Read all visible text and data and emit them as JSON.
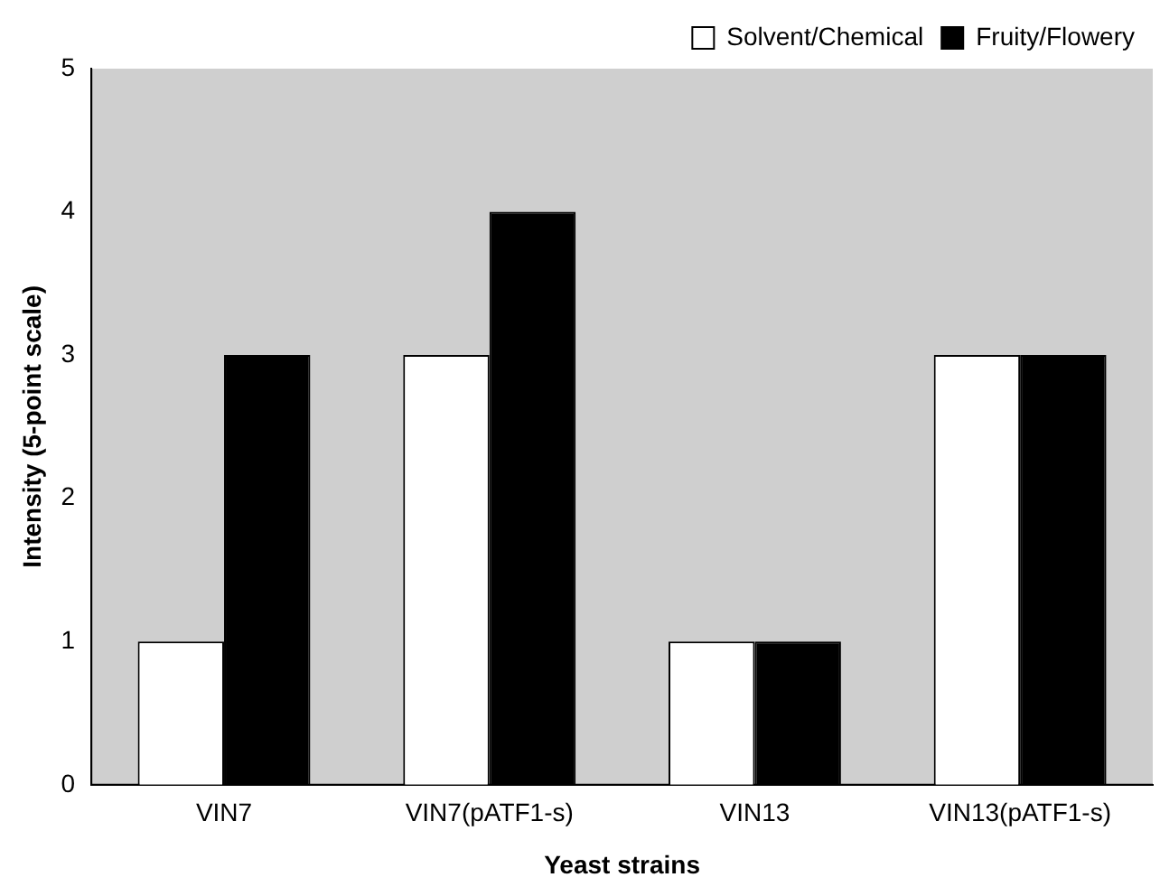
{
  "chart_data": {
    "type": "bar",
    "xlabel": "Yeast strains",
    "ylabel": "Intensity (5-point scale)",
    "categories": [
      "VIN7",
      "VIN7(pATF1-s)",
      "VIN13",
      "VIN13(pATF1-s)"
    ],
    "series": [
      {
        "name": "Solvent/Chemical",
        "color": "#ffffff",
        "values": [
          1,
          3,
          1,
          3
        ]
      },
      {
        "name": "Fruity/Flowery",
        "color": "#000000",
        "values": [
          3,
          4,
          1,
          3
        ]
      }
    ],
    "ylim": [
      0,
      5
    ],
    "yticks": [
      0,
      1,
      2,
      3,
      4,
      5
    ],
    "grid": false,
    "legend": "top right"
  }
}
